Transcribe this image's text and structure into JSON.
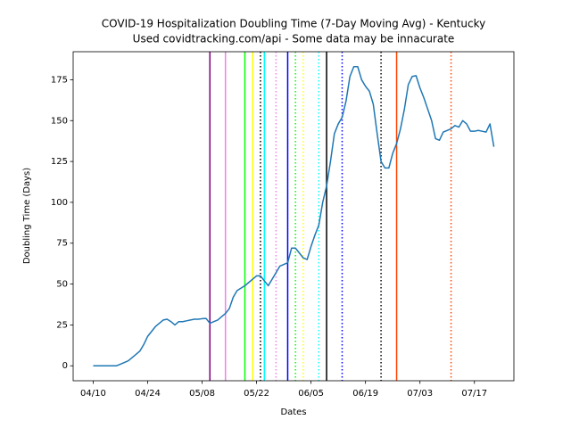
{
  "chart_data": {
    "type": "line",
    "title": "COVID-19 Hospitalization Doubling Time (7-Day Moving Avg) - Kentucky",
    "subtitle": "Used covidtracking.com/api - Some data may be innacurate",
    "x_label": "Dates",
    "y_label": "Doubling Time (Days)",
    "x": [
      "04/10",
      "04/11",
      "04/12",
      "04/13",
      "04/14",
      "04/15",
      "04/16",
      "04/17",
      "04/18",
      "04/19",
      "04/20",
      "04/21",
      "04/22",
      "04/23",
      "04/24",
      "04/25",
      "04/26",
      "04/27",
      "04/28",
      "04/29",
      "04/30",
      "05/01",
      "05/02",
      "05/03",
      "05/04",
      "05/05",
      "05/06",
      "05/07",
      "05/08",
      "05/09",
      "05/10",
      "05/11",
      "05/12",
      "05/13",
      "05/14",
      "05/15",
      "05/16",
      "05/17",
      "05/18",
      "05/19",
      "05/20",
      "05/21",
      "05/22",
      "05/23",
      "05/24",
      "05/25",
      "05/26",
      "05/27",
      "05/28",
      "05/29",
      "05/30",
      "05/31",
      "06/01",
      "06/02",
      "06/03",
      "06/04",
      "06/05",
      "06/06",
      "06/07",
      "06/08",
      "06/09",
      "06/10",
      "06/11",
      "06/12",
      "06/13",
      "06/14",
      "06/15",
      "06/16",
      "06/17",
      "06/18",
      "06/19",
      "06/20",
      "06/21",
      "06/22",
      "06/23",
      "06/24",
      "06/25",
      "06/26",
      "06/27",
      "06/28",
      "06/29",
      "06/30",
      "07/01",
      "07/02",
      "07/03",
      "07/04",
      "07/05",
      "07/06",
      "07/07",
      "07/08",
      "07/09",
      "07/10",
      "07/11",
      "07/12",
      "07/13",
      "07/14",
      "07/15",
      "07/16",
      "07/17",
      "07/18",
      "07/19",
      "07/20",
      "07/21",
      "07/22"
    ],
    "series": [
      {
        "color": "#1f77b4",
        "values": [
          0,
          0,
          0,
          0,
          0,
          0,
          0,
          1,
          2,
          3,
          5,
          7,
          9,
          13,
          18,
          21,
          24,
          26,
          28,
          28.5,
          27,
          25,
          27,
          27,
          27.5,
          28,
          28.5,
          28.5,
          28.8,
          29,
          26,
          27,
          28,
          30,
          32,
          35,
          42,
          46,
          47.5,
          49,
          51,
          53,
          55,
          55,
          52,
          49,
          53,
          57,
          61,
          62,
          63,
          72,
          72,
          69,
          66,
          65,
          73,
          80,
          86,
          100,
          110,
          125,
          142,
          148,
          152,
          162,
          177,
          183,
          183,
          175,
          171,
          168,
          160,
          142,
          125,
          121,
          121,
          130,
          136,
          145,
          157,
          172,
          177,
          177.5,
          170,
          164,
          157,
          150,
          139,
          138,
          143,
          144,
          145,
          147,
          146,
          150,
          148,
          143.5,
          143.5,
          144,
          143.5,
          143,
          148,
          134
        ]
      }
    ],
    "xticks": [
      "04/10",
      "04/24",
      "05/08",
      "05/22",
      "06/05",
      "06/19",
      "07/03",
      "07/17"
    ],
    "ylim": [
      -9.15,
      192.15
    ],
    "yticks": [
      0,
      25,
      50,
      75,
      100,
      125,
      150,
      175
    ],
    "vlines": [
      {
        "date": "05/10",
        "color": "purple",
        "style": "solid"
      },
      {
        "date": "05/14",
        "color": "violet",
        "style": "solid"
      },
      {
        "date": "05/19",
        "color": "lime",
        "style": "solid"
      },
      {
        "date": "05/21",
        "color": "yellow",
        "style": "solid"
      },
      {
        "date": "05/23",
        "color": "black",
        "style": "dotted"
      },
      {
        "date": "05/24",
        "color": "cyan",
        "style": "solid"
      },
      {
        "date": "05/27",
        "color": "violet",
        "style": "dotted"
      },
      {
        "date": "05/30",
        "color": "blue",
        "style": "solid"
      },
      {
        "date": "06/01",
        "color": "lime",
        "style": "dotted"
      },
      {
        "date": "06/03",
        "color": "yellow",
        "style": "dotted"
      },
      {
        "date": "06/07",
        "color": "cyan",
        "style": "dotted"
      },
      {
        "date": "06/09",
        "color": "black",
        "style": "solid"
      },
      {
        "date": "06/13",
        "color": "blue",
        "style": "dotted"
      },
      {
        "date": "06/23",
        "color": "black",
        "style": "dotted"
      },
      {
        "date": "06/27",
        "color": "orangered",
        "style": "solid"
      },
      {
        "date": "07/11",
        "color": "orangered",
        "style": "dotted"
      }
    ]
  }
}
